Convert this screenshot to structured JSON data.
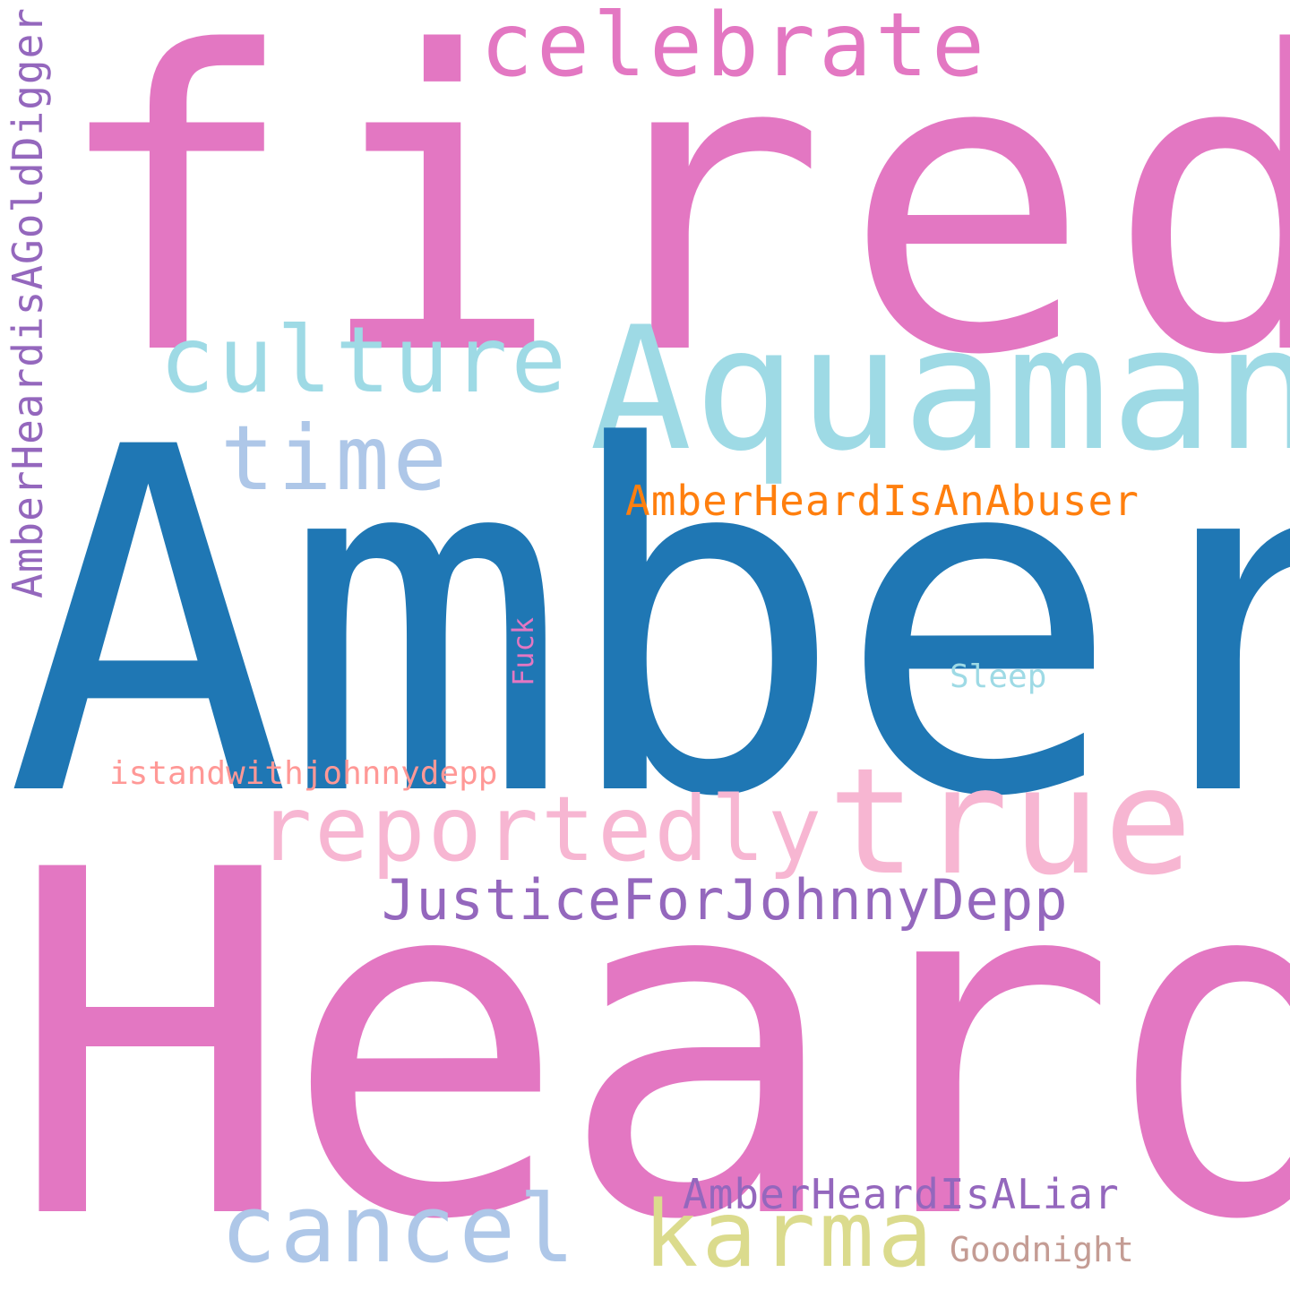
{
  "background_color": "#ffffff",
  "words": {
    "fired": {
      "text": "fired",
      "color": "#e377c2",
      "orientation": "horizontal"
    },
    "celebrate": {
      "text": "celebrate",
      "color": "#e377c2",
      "orientation": "horizontal"
    },
    "aquaman": {
      "text": "Aquaman",
      "color": "#9edae5",
      "orientation": "horizontal"
    },
    "culture": {
      "text": "culture",
      "color": "#9edae5",
      "orientation": "horizontal"
    },
    "time": {
      "text": "time",
      "color": "#aec7e8",
      "orientation": "horizontal"
    },
    "amber": {
      "text": "Amber",
      "color": "#1f77b4",
      "orientation": "horizontal"
    },
    "abuser": {
      "text": "AmberHeardIsAnAbuser",
      "color": "#ff7f0e",
      "orientation": "horizontal"
    },
    "golddigger": {
      "text": "AmberHeardisAGoldDigger",
      "color": "#9467bd",
      "orientation": "vertical"
    },
    "fuck": {
      "text": "Fuck",
      "color": "#e377c2",
      "orientation": "vertical"
    },
    "sleep": {
      "text": "Sleep",
      "color": "#9edae5",
      "orientation": "horizontal"
    },
    "istand": {
      "text": "istandwithjohnnydepp",
      "color": "#ff9896",
      "orientation": "horizontal"
    },
    "reportedly": {
      "text": "reportedly",
      "color": "#f7b6d2",
      "orientation": "horizontal"
    },
    "true": {
      "text": "true",
      "color": "#f7b6d2",
      "orientation": "horizontal"
    },
    "justice": {
      "text": "JusticeForJohnnyDepp",
      "color": "#9467bd",
      "orientation": "horizontal"
    },
    "heard": {
      "text": "Heard",
      "color": "#e377c2",
      "orientation": "horizontal"
    },
    "liar": {
      "text": "AmberHeardIsALiar",
      "color": "#9467bd",
      "orientation": "horizontal"
    },
    "cancel": {
      "text": "cancel",
      "color": "#aec7e8",
      "orientation": "horizontal"
    },
    "karma": {
      "text": "karma",
      "color": "#dbdb8d",
      "orientation": "horizontal"
    },
    "goodnight": {
      "text": "Goodnight",
      "color": "#c49c94",
      "orientation": "horizontal"
    }
  }
}
